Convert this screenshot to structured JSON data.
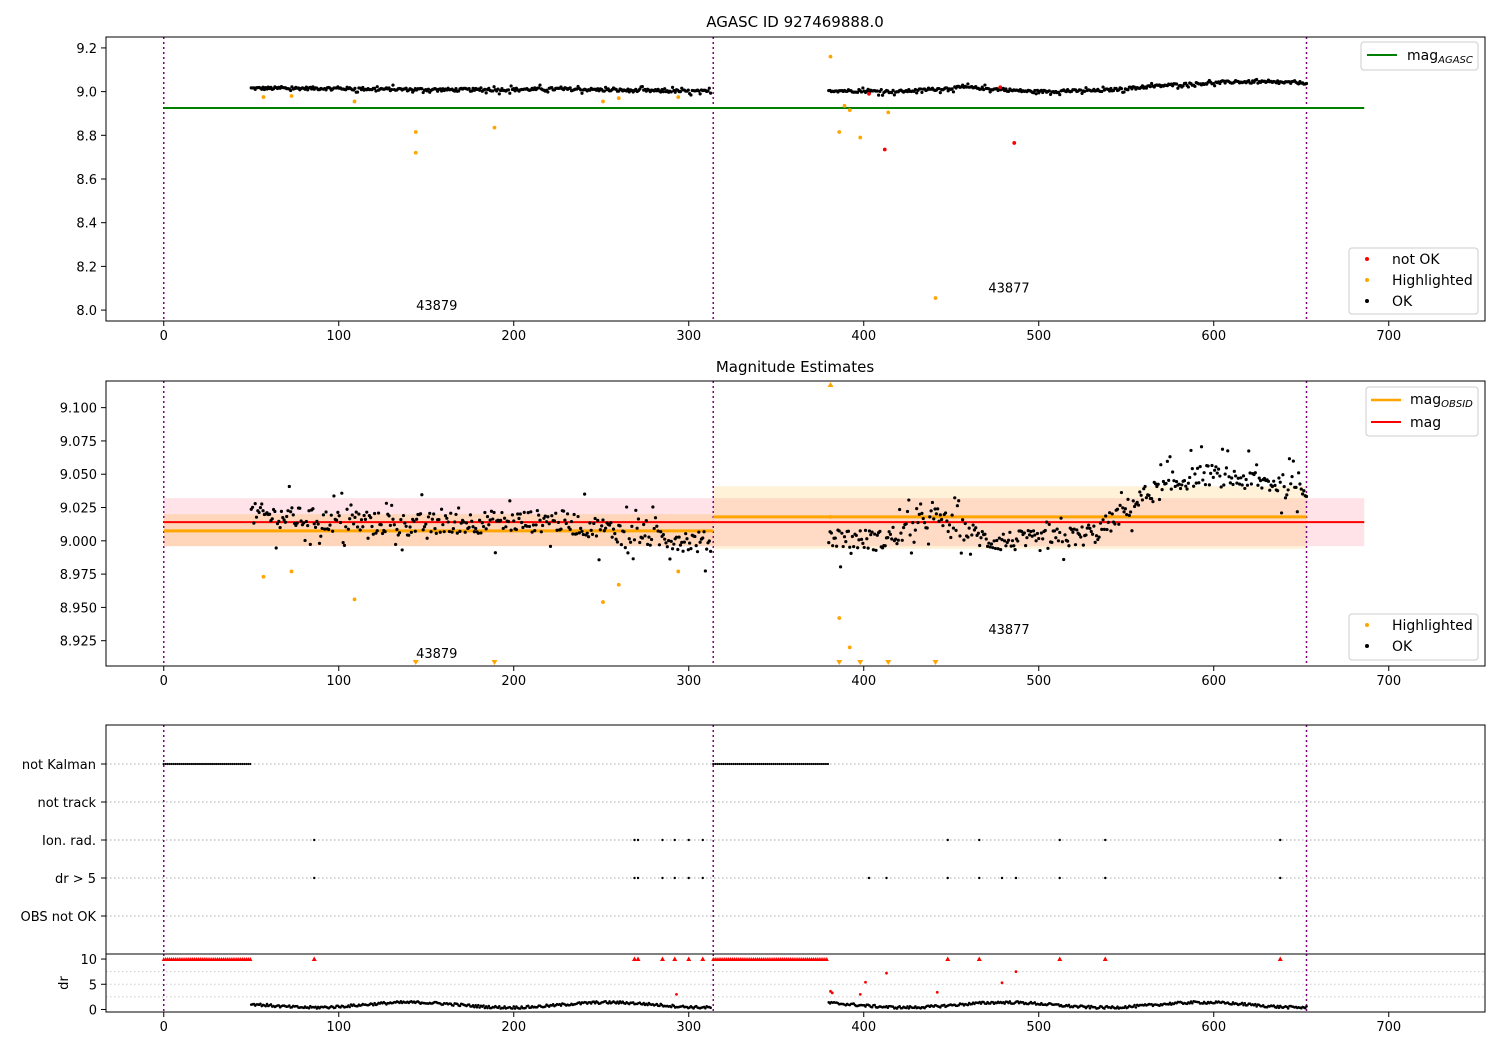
{
  "chart_data": [
    {
      "type": "scatter",
      "title": "AGASC ID 927469888.0",
      "xlim": [
        -33,
        755
      ],
      "ylim": [
        7.95,
        9.25
      ],
      "x_ticks": [
        0,
        100,
        200,
        300,
        400,
        500,
        600,
        700
      ],
      "y_ticks": [
        8.0,
        8.2,
        8.4,
        8.6,
        8.8,
        9.0,
        9.2
      ],
      "y_tick_labels": [
        "8.0",
        "8.2",
        "8.4",
        "8.6",
        "8.8",
        "9.0",
        "9.2"
      ],
      "obsid_boundaries": [
        0,
        314,
        653
      ],
      "obsid_labels": [
        {
          "text": "43879",
          "x": 156,
          "y": 8.0
        },
        {
          "text": "43877",
          "x": 483,
          "y": 8.08
        }
      ],
      "hlines": [
        {
          "name": "magAGASC",
          "y": 8.925,
          "x": [
            0,
            686
          ],
          "color": "#008000"
        }
      ],
      "legend_lines": [
        {
          "name": "mag",
          "sub": "AGASC",
          "color": "#008000"
        }
      ],
      "legend_points": [
        {
          "name": "not OK",
          "color": "#ff0000"
        },
        {
          "name": "Highlighted",
          "color": "#ffa500"
        },
        {
          "name": "OK",
          "color": "#000000"
        }
      ],
      "ok_segments": [
        {
          "x": [
            50,
            313
          ],
          "base": [
            9.015,
            9.015,
            9.01,
            9.008,
            9.012,
            9.005,
            9.0
          ],
          "noise": 0.01
        },
        {
          "x": [
            380,
            653
          ],
          "base": [
            9.005,
            9.0,
            9.02,
            9.0,
            9.005,
            9.03,
            9.045,
            9.04
          ],
          "noise": 0.009
        }
      ],
      "highlighted": [
        [
          57,
          8.975
        ],
        [
          73,
          8.98
        ],
        [
          109,
          8.955
        ],
        [
          144,
          8.815
        ],
        [
          144,
          8.72
        ],
        [
          189,
          8.835
        ],
        [
          251,
          8.955
        ],
        [
          260,
          8.97
        ],
        [
          294,
          8.975
        ],
        [
          381,
          9.16
        ],
        [
          386,
          8.815
        ],
        [
          389,
          8.935
        ],
        [
          392,
          8.915
        ],
        [
          398,
          8.79
        ],
        [
          414,
          8.905
        ],
        [
          441,
          8.055
        ]
      ],
      "not_ok": [
        [
          403,
          8.99
        ],
        [
          412,
          8.735
        ],
        [
          478,
          9.02
        ],
        [
          486,
          8.765
        ]
      ]
    },
    {
      "type": "scatter",
      "title": "Magnitude Estimates",
      "xlim": [
        -33,
        755
      ],
      "ylim": [
        8.906,
        9.12
      ],
      "x_ticks": [
        0,
        100,
        200,
        300,
        400,
        500,
        600,
        700
      ],
      "y_ticks": [
        8.925,
        8.95,
        8.975,
        9.0,
        9.025,
        9.05,
        9.075,
        9.1
      ],
      "y_tick_labels": [
        "8.925",
        "8.950",
        "8.975",
        "9.000",
        "9.025",
        "9.050",
        "9.075",
        "9.100"
      ],
      "obsid_boundaries": [
        0,
        314,
        653
      ],
      "obsid_labels": [
        {
          "text": "43879",
          "x": 156,
          "y": 8.912
        },
        {
          "text": "43877",
          "x": 483,
          "y": 8.93
        }
      ],
      "bands": [
        {
          "x": [
            0,
            686
          ],
          "y": [
            8.996,
            9.032
          ],
          "color": "#ffc0cb",
          "opacity": 0.45
        },
        {
          "x": [
            0,
            314
          ],
          "y": [
            8.996,
            9.02
          ],
          "color": "#ffa500",
          "opacity": 0.2
        },
        {
          "x": [
            314,
            653
          ],
          "y": [
            8.994,
            9.041
          ],
          "color": "#ffa500",
          "opacity": 0.15
        }
      ],
      "hlines": [
        {
          "name": "magOBSID-1",
          "y": 9.0075,
          "x": [
            0,
            314
          ],
          "color": "#ffa500"
        },
        {
          "name": "magOBSID-2",
          "y": 9.018,
          "x": [
            314,
            653
          ],
          "color": "#ffa500"
        },
        {
          "name": "mag",
          "y": 9.014,
          "x": [
            0,
            686
          ],
          "color": "#ff0000"
        }
      ],
      "legend_lines": [
        {
          "name": "mag",
          "sub": "OBSID",
          "color": "#ffa500"
        },
        {
          "name": "mag",
          "sub": "",
          "color": "#ff0000"
        }
      ],
      "legend_points": [
        {
          "name": "Highlighted",
          "color": "#ffa500"
        },
        {
          "name": "OK",
          "color": "#000000"
        }
      ],
      "ok_segments": [
        {
          "x": [
            50,
            313
          ],
          "base": [
            9.02,
            9.015,
            9.012,
            9.014,
            9.015,
            9.005,
            8.998
          ],
          "noise": 0.012
        },
        {
          "x": [
            380,
            653
          ],
          "base": [
            9.003,
            9.0,
            9.018,
            9.0,
            9.0,
            9.005,
            9.035,
            9.05,
            9.045,
            9.04
          ],
          "noise": 0.011
        }
      ],
      "highlighted": [
        [
          57,
          8.973
        ],
        [
          73,
          8.977
        ],
        [
          109,
          8.956
        ],
        [
          251,
          8.954
        ],
        [
          260,
          8.967
        ],
        [
          294,
          8.977
        ],
        [
          386,
          8.942
        ],
        [
          392,
          8.92
        ],
        [
          381,
          9.018
        ]
      ],
      "highlighted_up": [
        [
          381,
          9.12
        ]
      ],
      "highlighted_down": [
        [
          144,
          8.907
        ],
        [
          189,
          8.907
        ],
        [
          386,
          8.907
        ],
        [
          398,
          8.907
        ],
        [
          414,
          8.907
        ],
        [
          441,
          8.907
        ]
      ]
    },
    {
      "type": "scatter",
      "title": "",
      "xlim": [
        -33,
        755
      ],
      "x_ticks": [
        0,
        100,
        200,
        300,
        400,
        500,
        600,
        700
      ],
      "obsid_boundaries": [
        0,
        314,
        653
      ],
      "flag_rows": [
        "not Kalman",
        "not track",
        "Ion. rad.",
        "dr > 5",
        "OBS not OK"
      ],
      "flags": {
        "not Kalman": [
          [
            0,
            50
          ],
          [
            314,
            380
          ]
        ],
        "not track": [],
        "Ion. rad.": [
          86,
          269,
          271,
          285,
          292,
          300,
          308,
          448,
          466,
          512,
          538,
          638
        ],
        "dr > 5": [
          86,
          269,
          271,
          285,
          292,
          300,
          308,
          403,
          413,
          448,
          466,
          479,
          487,
          512,
          538,
          638
        ],
        "OBS not OK": []
      },
      "dr": {
        "ylabel": "dr",
        "ylim": [
          -0.5,
          11
        ],
        "y_ticks": [
          0,
          5,
          10
        ],
        "y_tick_labels": [
          "0",
          "5",
          "10"
        ],
        "clipped_value": 10,
        "clipped_x": [
          [
            0,
            50
          ],
          [
            314,
            380
          ]
        ],
        "clipped_points": [
          86,
          269,
          271,
          285,
          292,
          300,
          308,
          448,
          466,
          512,
          538,
          638
        ],
        "red_points": [
          [
            293,
            3.0
          ],
          [
            381,
            3.6
          ],
          [
            382,
            3.3
          ],
          [
            398,
            3.0
          ],
          [
            401,
            5.4
          ],
          [
            413,
            7.2
          ],
          [
            442,
            3.4
          ],
          [
            479,
            5.3
          ],
          [
            487,
            7.5
          ]
        ],
        "ok_segments": [
          {
            "x": [
              50,
              313
            ]
          },
          {
            "x": [
              380,
              653
            ]
          }
        ]
      }
    }
  ]
}
